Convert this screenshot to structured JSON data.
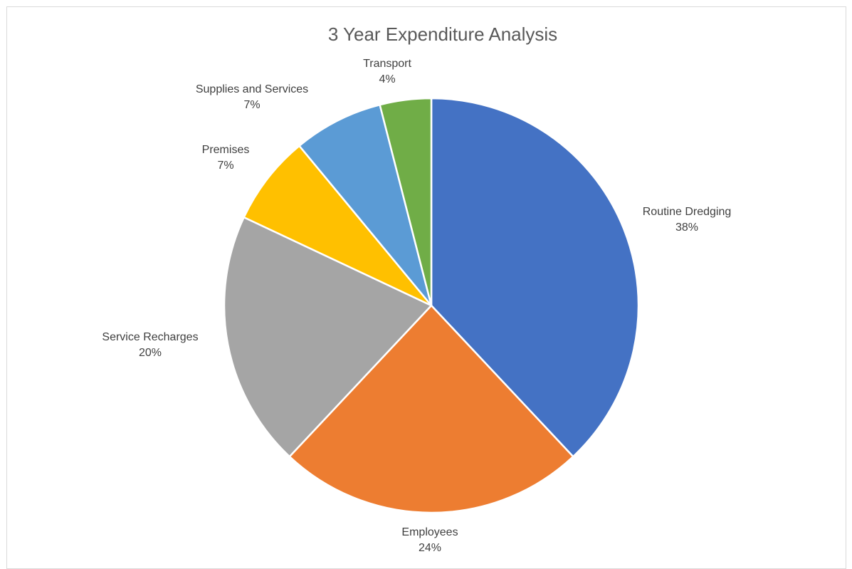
{
  "chart_data": {
    "type": "pie",
    "title": "3 Year Expenditure Analysis",
    "categories": [
      "Routine Dredging",
      "Employees",
      "Service Recharges",
      "Premises",
      "Supplies and Services",
      "Transport"
    ],
    "values": [
      38,
      24,
      20,
      7,
      7,
      4
    ],
    "percent_labels": [
      "38%",
      "24%",
      "20%",
      "7%",
      "7%",
      "4%"
    ],
    "colors": [
      "#4472C4",
      "#ED7D31",
      "#A5A5A5",
      "#FFC000",
      "#5B9BD5",
      "#70AD47"
    ],
    "start_angle_deg": 0,
    "direction": "clockwise",
    "legend": "none"
  }
}
